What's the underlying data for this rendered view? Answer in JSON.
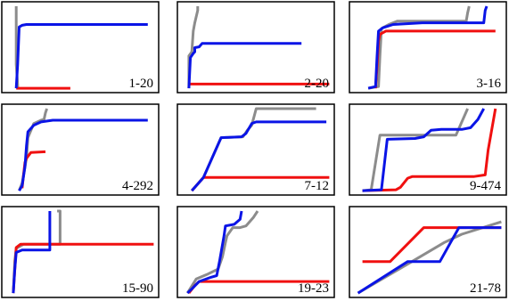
{
  "colors": {
    "gray": "#8c8c8c",
    "blue": "#0a14e6",
    "red": "#f01010"
  },
  "chart_data": [
    {
      "type": "line",
      "label": "1-20",
      "series": [
        {
          "color": "gray",
          "points": [
            [
              0.06,
              0.0
            ],
            [
              0.06,
              0.05
            ],
            [
              0.05,
              0.3
            ],
            [
              0.05,
              1.0
            ]
          ]
        },
        {
          "color": "red",
          "points": [
            [
              0.05,
              0.01
            ],
            [
              0.42,
              0.01
            ]
          ]
        },
        {
          "color": "blue",
          "points": [
            [
              0.05,
              0.01
            ],
            [
              0.06,
              0.3
            ],
            [
              0.07,
              0.75
            ],
            [
              0.09,
              0.77
            ],
            [
              0.12,
              0.78
            ],
            [
              0.95,
              0.78
            ]
          ]
        }
      ]
    },
    {
      "type": "line",
      "label": "2-20",
      "series": [
        {
          "color": "gray",
          "points": [
            [
              0.03,
              0.01
            ],
            [
              0.03,
              0.4
            ],
            [
              0.05,
              0.45
            ],
            [
              0.06,
              0.7
            ],
            [
              0.07,
              0.8
            ],
            [
              0.09,
              0.95
            ],
            [
              0.09,
              1.0
            ]
          ]
        },
        {
          "color": "red",
          "points": [
            [
              0.03,
              0.06
            ],
            [
              0.99,
              0.06
            ]
          ]
        },
        {
          "color": "blue",
          "points": [
            [
              0.03,
              0.01
            ],
            [
              0.04,
              0.38
            ],
            [
              0.06,
              0.43
            ],
            [
              0.07,
              0.45
            ],
            [
              0.07,
              0.5
            ],
            [
              0.1,
              0.51
            ],
            [
              0.12,
              0.55
            ],
            [
              0.8,
              0.55
            ]
          ]
        }
      ]
    },
    {
      "type": "line",
      "label": "3-16",
      "series": [
        {
          "color": "gray",
          "points": [
            [
              0.08,
              0.01
            ],
            [
              0.15,
              0.03
            ],
            [
              0.16,
              0.4
            ],
            [
              0.17,
              0.73
            ],
            [
              0.22,
              0.78
            ],
            [
              0.28,
              0.82
            ],
            [
              0.75,
              0.82
            ],
            [
              0.76,
              0.92
            ],
            [
              0.77,
              1.0
            ]
          ]
        },
        {
          "color": "red",
          "points": [
            [
              0.13,
              0.01
            ],
            [
              0.14,
              0.28
            ],
            [
              0.15,
              0.58
            ],
            [
              0.16,
              0.66
            ],
            [
              0.2,
              0.7
            ],
            [
              0.95,
              0.7
            ]
          ]
        },
        {
          "color": "blue",
          "points": [
            [
              0.08,
              0.01
            ],
            [
              0.13,
              0.03
            ],
            [
              0.14,
              0.4
            ],
            [
              0.15,
              0.7
            ],
            [
              0.18,
              0.74
            ],
            [
              0.25,
              0.78
            ],
            [
              0.45,
              0.8
            ],
            [
              0.87,
              0.8
            ],
            [
              0.88,
              0.95
            ],
            [
              0.89,
              1.0
            ]
          ]
        }
      ]
    },
    {
      "type": "line",
      "label": "4-292",
      "series": [
        {
          "color": "gray",
          "points": [
            [
              0.07,
              0.01
            ],
            [
              0.09,
              0.1
            ],
            [
              0.12,
              0.4
            ],
            [
              0.13,
              0.65
            ],
            [
              0.17,
              0.82
            ],
            [
              0.22,
              0.86
            ],
            [
              0.24,
              0.87
            ],
            [
              0.25,
              0.95
            ],
            [
              0.26,
              1.0
            ]
          ]
        },
        {
          "color": "red",
          "points": [
            [
              0.09,
              0.04
            ],
            [
              0.1,
              0.2
            ],
            [
              0.11,
              0.35
            ],
            [
              0.12,
              0.4
            ],
            [
              0.15,
              0.47
            ],
            [
              0.25,
              0.48
            ]
          ]
        },
        {
          "color": "blue",
          "points": [
            [
              0.07,
              0.01
            ],
            [
              0.09,
              0.07
            ],
            [
              0.11,
              0.3
            ],
            [
              0.12,
              0.55
            ],
            [
              0.13,
              0.72
            ],
            [
              0.17,
              0.8
            ],
            [
              0.22,
              0.84
            ],
            [
              0.3,
              0.86
            ],
            [
              0.95,
              0.86
            ]
          ]
        }
      ]
    },
    {
      "type": "line",
      "label": "7-12",
      "series": [
        {
          "color": "gray",
          "points": [
            [
              0.05,
              0.01
            ],
            [
              0.13,
              0.17
            ],
            [
              0.25,
              0.65
            ],
            [
              0.4,
              0.66
            ],
            [
              0.43,
              0.74
            ],
            [
              0.46,
              0.8
            ],
            [
              0.49,
              1.0
            ],
            [
              0.9,
              1.0
            ]
          ]
        },
        {
          "color": "red",
          "points": [
            [
              0.05,
              0.01
            ],
            [
              0.13,
              0.17
            ],
            [
              0.99,
              0.17
            ]
          ]
        },
        {
          "color": "blue",
          "points": [
            [
              0.05,
              0.01
            ],
            [
              0.13,
              0.17
            ],
            [
              0.25,
              0.65
            ],
            [
              0.39,
              0.66
            ],
            [
              0.42,
              0.7
            ],
            [
              0.46,
              0.82
            ],
            [
              0.49,
              0.84
            ],
            [
              0.97,
              0.84
            ]
          ]
        }
      ]
    },
    {
      "type": "line",
      "label": "9-474",
      "series": [
        {
          "color": "gray",
          "points": [
            [
              0.04,
              0.01
            ],
            [
              0.1,
              0.02
            ],
            [
              0.16,
              0.68
            ],
            [
              0.68,
              0.68
            ],
            [
              0.76,
              1.0
            ]
          ]
        },
        {
          "color": "red",
          "points": [
            [
              0.04,
              0.01
            ],
            [
              0.27,
              0.02
            ],
            [
              0.3,
              0.05
            ],
            [
              0.35,
              0.16
            ],
            [
              0.38,
              0.18
            ],
            [
              0.8,
              0.18
            ],
            [
              0.88,
              0.2
            ],
            [
              0.9,
              0.5
            ],
            [
              0.95,
              1.0
            ]
          ]
        },
        {
          "color": "blue",
          "points": [
            [
              0.04,
              0.01
            ],
            [
              0.17,
              0.02
            ],
            [
              0.21,
              0.63
            ],
            [
              0.4,
              0.64
            ],
            [
              0.46,
              0.66
            ],
            [
              0.51,
              0.74
            ],
            [
              0.58,
              0.75
            ],
            [
              0.72,
              0.75
            ],
            [
              0.78,
              0.77
            ],
            [
              0.83,
              0.87
            ],
            [
              0.87,
              1.0
            ]
          ]
        }
      ]
    },
    {
      "type": "line",
      "label": "15-90",
      "series": [
        {
          "color": "gray",
          "points": [
            [
              0.03,
              0.01
            ],
            [
              0.04,
              0.4
            ],
            [
              0.05,
              0.55
            ],
            [
              0.1,
              0.6
            ],
            [
              0.35,
              0.6
            ],
            [
              0.35,
              1.0
            ],
            [
              0.33,
              1.0
            ]
          ]
        },
        {
          "color": "red",
          "points": [
            [
              0.03,
              0.01
            ],
            [
              0.05,
              0.56
            ],
            [
              0.08,
              0.6
            ],
            [
              0.99,
              0.6
            ]
          ]
        },
        {
          "color": "blue",
          "points": [
            [
              0.03,
              0.01
            ],
            [
              0.04,
              0.3
            ],
            [
              0.05,
              0.5
            ],
            [
              0.09,
              0.53
            ],
            [
              0.28,
              0.53
            ],
            [
              0.28,
              1.0
            ]
          ]
        }
      ]
    },
    {
      "type": "line",
      "label": "19-23",
      "series": [
        {
          "color": "gray",
          "points": [
            [
              0.02,
              0.01
            ],
            [
              0.08,
              0.18
            ],
            [
              0.16,
              0.24
            ],
            [
              0.23,
              0.3
            ],
            [
              0.26,
              0.45
            ],
            [
              0.28,
              0.62
            ],
            [
              0.29,
              0.7
            ],
            [
              0.33,
              0.8
            ],
            [
              0.38,
              0.8
            ],
            [
              0.42,
              0.82
            ],
            [
              0.47,
              0.92
            ],
            [
              0.5,
              1.0
            ]
          ]
        },
        {
          "color": "red",
          "points": [
            [
              0.03,
              0.01
            ],
            [
              0.07,
              0.1
            ],
            [
              0.1,
              0.15
            ],
            [
              0.99,
              0.15
            ]
          ]
        },
        {
          "color": "blue",
          "points": [
            [
              0.02,
              0.01
            ],
            [
              0.05,
              0.06
            ],
            [
              0.1,
              0.15
            ],
            [
              0.18,
              0.2
            ],
            [
              0.22,
              0.22
            ],
            [
              0.24,
              0.4
            ],
            [
              0.27,
              0.7
            ],
            [
              0.28,
              0.82
            ],
            [
              0.34,
              0.84
            ],
            [
              0.38,
              0.9
            ],
            [
              0.39,
              1.0
            ]
          ]
        }
      ]
    },
    {
      "type": "line",
      "label": "21-78",
      "series": [
        {
          "color": "gray",
          "points": [
            [
              0.01,
              0.01
            ],
            [
              0.34,
              0.35
            ],
            [
              0.6,
              0.62
            ],
            [
              0.72,
              0.72
            ],
            [
              0.99,
              0.87
            ]
          ]
        },
        {
          "color": "red",
          "points": [
            [
              0.04,
              0.39
            ],
            [
              0.23,
              0.39
            ],
            [
              0.46,
              0.8
            ],
            [
              0.99,
              0.8
            ]
          ]
        },
        {
          "color": "blue",
          "points": [
            [
              0.01,
              0.01
            ],
            [
              0.35,
              0.39
            ],
            [
              0.57,
              0.39
            ],
            [
              0.7,
              0.8
            ],
            [
              0.99,
              0.8
            ]
          ]
        }
      ]
    }
  ]
}
